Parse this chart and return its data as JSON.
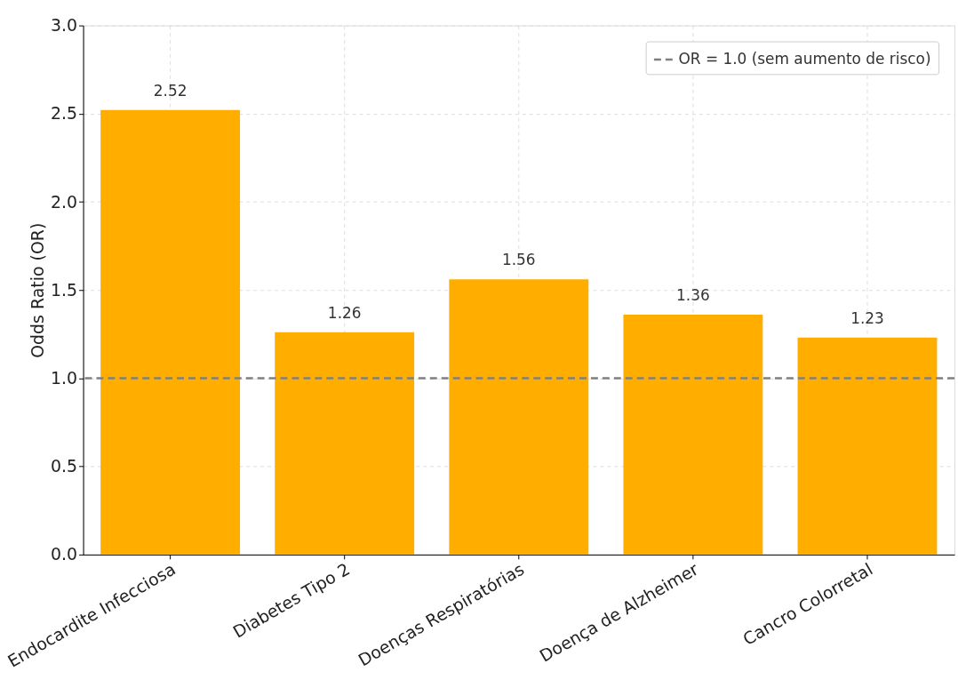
{
  "chart_data": {
    "type": "bar",
    "ylabel": "Odds Ratio (OR)",
    "categories": [
      "Endocardite Infecciosa",
      "Diabetes Tipo 2",
      "Doenças Respiratórias",
      "Doença de Alzheimer",
      "Cancro Colorretal"
    ],
    "values": [
      2.52,
      1.26,
      1.56,
      1.36,
      1.23
    ],
    "color": "#ffae00",
    "data_labels": true,
    "ylim": [
      0,
      3.0
    ],
    "yticks": [
      {
        "value": 0,
        "label": "0.0"
      },
      {
        "value": 0.5,
        "label": "0.5"
      },
      {
        "value": 1,
        "label": "1.0"
      },
      {
        "value": 1.5,
        "label": "1.5"
      },
      {
        "value": 2,
        "label": "2.0"
      },
      {
        "value": 2.5,
        "label": "2.5"
      },
      {
        "value": 3,
        "label": "3.0"
      }
    ],
    "ref_lines": [
      {
        "axis": "y",
        "value": 1.0,
        "label": "OR = 1.0 (sem aumento de risco)",
        "color": "#808080",
        "line_style": "dashed"
      }
    ],
    "grid": true,
    "legend": "top right"
  }
}
